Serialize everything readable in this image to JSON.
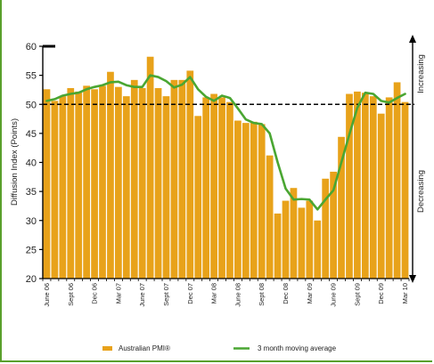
{
  "chart_data": {
    "type": "bar",
    "ylabel": "Diffusion Index (Points)",
    "ylim": [
      20,
      60
    ],
    "yticks": [
      "20",
      "25",
      "30",
      "35",
      "40",
      "45",
      "50",
      "55",
      "60"
    ],
    "reference_line": 50,
    "xtick_labels": [
      "June 06",
      "Sept 06",
      "Dec 06",
      "Mar 07",
      "June 07",
      "Sept 07",
      "Dec 07",
      "Mar 08",
      "June 08",
      "Sept 08",
      "Dec 08",
      "Mar 09",
      "June 09",
      "Sept 09",
      "Dec 09",
      "Mar 10"
    ],
    "xtick_index": [
      0,
      3,
      6,
      9,
      12,
      15,
      18,
      21,
      24,
      27,
      30,
      33,
      36,
      39,
      42,
      45
    ],
    "side_labels": {
      "upper": "Increasing",
      "lower": "Decreasing"
    },
    "series": [
      {
        "name": "Australian PMI®",
        "type": "bar",
        "color": "#e8a21a",
        "values": [
          52.6,
          50.6,
          51.4,
          52.8,
          52.2,
          53.2,
          52.6,
          53.2,
          55.6,
          53.0,
          51.4,
          54.2,
          52.8,
          58.2,
          52.8,
          51.4,
          54.2,
          54.2,
          55.8,
          48.0,
          51.2,
          51.8,
          51.2,
          50.4,
          47.2,
          46.8,
          47.0,
          46.6,
          41.2,
          31.2,
          33.4,
          35.6,
          32.2,
          33.4,
          30.0,
          37.2,
          38.4,
          44.4,
          51.8,
          52.2,
          52.0,
          51.4,
          48.4,
          51.2,
          53.8,
          50.4
        ]
      },
      {
        "name": "3 month moving average",
        "type": "line",
        "color": "#4aa632",
        "values": [
          50.6,
          50.9,
          51.5,
          51.8,
          52.0,
          52.6,
          53.0,
          53.3,
          53.8,
          53.9,
          53.3,
          53.0,
          53.0,
          55.0,
          54.7,
          54.0,
          52.9,
          53.4,
          54.7,
          52.6,
          51.3,
          50.6,
          51.5,
          51.1,
          49.3,
          47.4,
          46.8,
          46.6,
          45.0,
          40.0,
          35.5,
          33.6,
          33.7,
          33.6,
          31.9,
          33.6,
          35.2,
          40.0,
          44.8,
          49.4,
          52.0,
          51.8,
          50.6,
          50.3,
          51.1,
          51.8
        ]
      }
    ],
    "legend_position": "bottom"
  }
}
